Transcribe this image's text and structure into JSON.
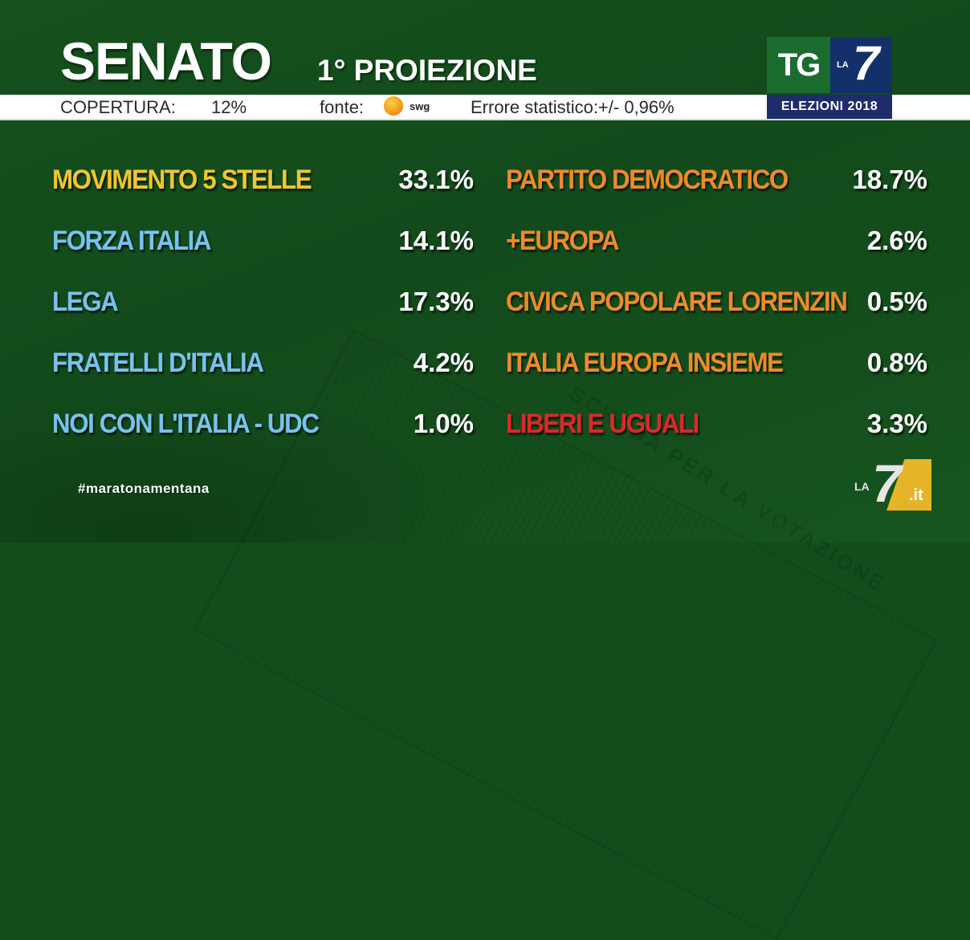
{
  "header": {
    "title": "SENATO",
    "subtitle": "1° PROIEZIONE"
  },
  "infobar": {
    "coverage_label": "COPERTURA:",
    "coverage_value": "12%",
    "source_label": "fonte:",
    "source_name": "swg",
    "source_icon": "swg-logo-icon",
    "error_label": "Errore statistico:+/- 0,96%"
  },
  "logo": {
    "tg": "TG",
    "la": "LA",
    "seven": "7",
    "badge": "ELEZIONI 2018"
  },
  "colors": {
    "background": "#144d1c",
    "m5s": "#f2c531",
    "centrodestra": "#79c1f0",
    "centrosinistra": "#ef8a2c",
    "leu": "#e0262a",
    "value": "#ffffff",
    "badge_blue": "#1e2c6c"
  },
  "results": {
    "left": [
      {
        "party": "MOVIMENTO 5 STELLE",
        "value": "33.1%",
        "color": "#f2c531"
      },
      {
        "party": "FORZA ITALIA",
        "value": "14.1%",
        "color": "#79c1f0"
      },
      {
        "party": "LEGA",
        "value": "17.3%",
        "color": "#79c1f0"
      },
      {
        "party": "FRATELLI D'ITALIA",
        "value": "4.2%",
        "color": "#79c1f0"
      },
      {
        "party": "NOI CON L'ITALIA - UDC",
        "value": "1.0%",
        "color": "#79c1f0"
      }
    ],
    "right": [
      {
        "party": "PARTITO DEMOCRATICO",
        "value": "18.7%",
        "color": "#ef8a2c"
      },
      {
        "party": "+EUROPA",
        "value": "2.6%",
        "color": "#ef8a2c"
      },
      {
        "party": "CIVICA POPOLARE LORENZIN",
        "value": "0.5%",
        "color": "#ef8a2c"
      },
      {
        "party": "ITALIA EUROPA INSIEME",
        "value": "0.8%",
        "color": "#ef8a2c"
      },
      {
        "party": "LIBERI E UGUALI",
        "value": "3.3%",
        "color": "#e0262a"
      }
    ]
  },
  "footer": {
    "hashtag": "#maratonamentana",
    "watermark_la": "LA",
    "watermark_7": "7",
    "watermark_it": ".it"
  },
  "background_text": "SCHEDA PER LA VOTAZIONE",
  "chart_data": {
    "type": "table",
    "title": "SENATO 1° PROIEZIONE",
    "subtitle": "COPERTURA: 12% — fonte: swg — Errore statistico: +/- 0,96%",
    "categories": [
      "MOVIMENTO 5 STELLE",
      "FORZA ITALIA",
      "LEGA",
      "FRATELLI D'ITALIA",
      "NOI CON L'ITALIA - UDC",
      "PARTITO DEMOCRATICO",
      "+EUROPA",
      "CIVICA POPOLARE LORENZIN",
      "ITALIA EUROPA INSIEME",
      "LIBERI E UGUALI"
    ],
    "values": [
      33.1,
      14.1,
      17.3,
      4.2,
      1.0,
      18.7,
      2.6,
      0.5,
      0.8,
      3.3
    ],
    "unit": "%",
    "coverage_percent": 12,
    "error_margin_percent": 0.96
  }
}
